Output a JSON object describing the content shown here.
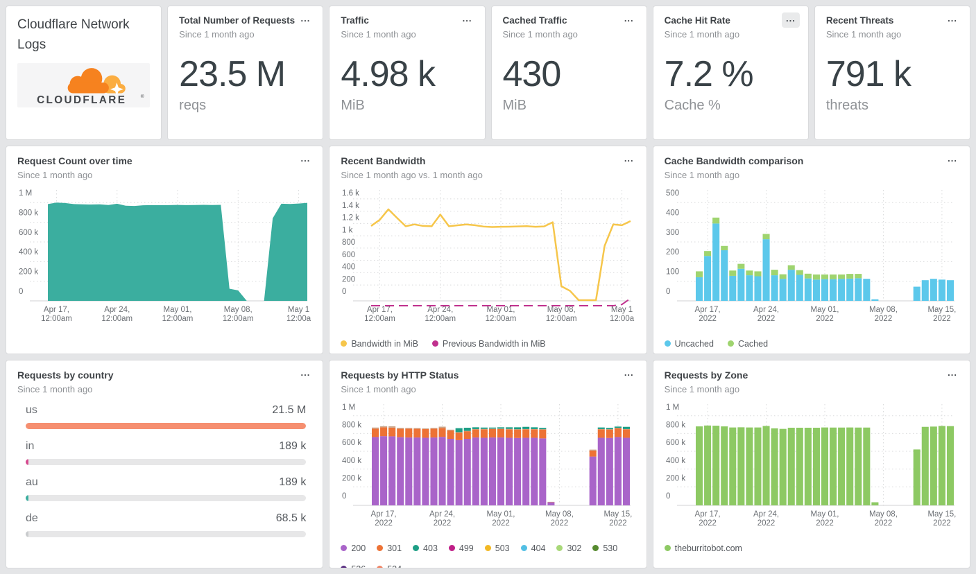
{
  "branding": {
    "title": "Cloudflare Network Logs",
    "logo_text": "CLOUDFLARE",
    "logo_reg": "®",
    "logo_colors": {
      "cloud": "#F6821F",
      "sun": "#FBAD41",
      "text": "#43464A"
    }
  },
  "ui": {
    "menu_icon": "...",
    "page_bg": "#e4e5e7"
  },
  "stats": [
    {
      "title": "Total Number of Requests",
      "subtitle": "Since 1 month ago",
      "value": "23.5 M",
      "unit": "reqs"
    },
    {
      "title": "Traffic",
      "subtitle": "Since 1 month ago",
      "value": "4.98 k",
      "unit": "MiB"
    },
    {
      "title": "Cached Traffic",
      "subtitle": "Since 1 month ago",
      "value": "430",
      "unit": "MiB"
    },
    {
      "title": "Cache Hit Rate",
      "subtitle": "Since 1 month ago",
      "value": "7.2 %",
      "unit": "Cache %"
    },
    {
      "title": "Recent Threats",
      "subtitle": "Since 1 month ago",
      "value": "791 k",
      "unit": "threats"
    }
  ],
  "panels": {
    "request_count": {
      "title": "Request Count over time",
      "subtitle": "Since 1 month ago"
    },
    "bandwidth": {
      "title": "Recent Bandwidth",
      "subtitle": "Since 1 month ago vs. 1 month ago"
    },
    "cache_bw": {
      "title": "Cache Bandwidth comparison",
      "subtitle": "Since 1 month ago"
    },
    "country": {
      "title": "Requests by country",
      "subtitle": "Since 1 month ago"
    },
    "http_status": {
      "title": "Requests by HTTP Status",
      "subtitle": "Since 1 month ago"
    },
    "zone": {
      "title": "Requests by Zone",
      "subtitle": "Since 1 month ago"
    }
  },
  "legends": {
    "bandwidth": [
      {
        "label": "Bandwidth in MiB",
        "color": "#f6c64b"
      },
      {
        "label": "Previous Bandwidth in MiB",
        "color": "#c0318e"
      }
    ],
    "cache_bw": [
      {
        "label": "Uncached",
        "color": "#5cc8eb"
      },
      {
        "label": "Cached",
        "color": "#9fd46f"
      }
    ],
    "http_status": [
      {
        "label": "200",
        "color": "#a964c9"
      },
      {
        "label": "301",
        "color": "#ed7235"
      },
      {
        "label": "403",
        "color": "#1d9e85"
      },
      {
        "label": "499",
        "color": "#bf1e87"
      },
      {
        "label": "503",
        "color": "#f2b824"
      },
      {
        "label": "404",
        "color": "#52bfe4"
      },
      {
        "label": "302",
        "color": "#a8d878"
      },
      {
        "label": "530",
        "color": "#568a2f"
      },
      {
        "label": "526",
        "color": "#5b3082"
      },
      {
        "label": "524",
        "color": "#f08465"
      }
    ],
    "zone": [
      {
        "label": "theburritobot.com",
        "color": "#8dc963"
      }
    ]
  },
  "countries": {
    "rows": [
      {
        "label": "us",
        "value": "21.5 M",
        "width_css": "100%",
        "color": "#f68f70"
      },
      {
        "label": "in",
        "value": "189 k",
        "width_css": "0.7%",
        "color": "#d6498f"
      },
      {
        "label": "au",
        "value": "189 k",
        "width_css": "0.7%",
        "color": "#3bae9f"
      },
      {
        "label": "de",
        "value": "68.5 k",
        "width_css": "0.3%",
        "color": "#c9cbcd"
      }
    ]
  },
  "chart_data": {
    "request_count": {
      "type": "area",
      "title": "Request Count over time",
      "ylabel": "requests",
      "ymax": 1000,
      "unit": "k requests",
      "color": "#3bae9f",
      "days": 31,
      "yticks": [
        "1 M",
        "800 k",
        "600 k",
        "400 k",
        "200 k",
        "0"
      ],
      "xticks": [
        {
          "l1": "Apr 17,",
          "l2": "12:00am",
          "d": 1
        },
        {
          "l1": "Apr 24,",
          "l2": "12:00am",
          "d": 8
        },
        {
          "l1": "May 01,",
          "l2": "12:00am",
          "d": 15
        },
        {
          "l1": "May 08,",
          "l2": "12:00am",
          "d": 22
        },
        {
          "l1": "May 1",
          "l2": "12:00a",
          "d": 29
        }
      ],
      "values": [
        885,
        900,
        895,
        885,
        882,
        880,
        882,
        875,
        888,
        868,
        865,
        872,
        874,
        873,
        874,
        876,
        874,
        875,
        877,
        875,
        877,
        25,
        8,
        0,
        0,
        0,
        740,
        888,
        886,
        890,
        897
      ]
    },
    "bandwidth": {
      "type": "line",
      "title": "Recent Bandwidth",
      "ylabel": "MiB",
      "ymax": 1600,
      "color": "#f6c64b",
      "prev_color": "#c0318e",
      "days": 31,
      "yticks": [
        "1.6 k",
        "1.4 k",
        "1.2 k",
        "1 k",
        "800",
        "600",
        "400",
        "200",
        "0"
      ],
      "xticks": [
        {
          "l1": "Apr 17,",
          "l2": "12:00am",
          "d": 1
        },
        {
          "l1": "Apr 24,",
          "l2": "12:00am",
          "d": 8
        },
        {
          "l1": "May 01,",
          "l2": "12:00am",
          "d": 15
        },
        {
          "l1": "May 08,",
          "l2": "12:00am",
          "d": 22
        },
        {
          "l1": "May 1",
          "l2": "12:00a",
          "d": 29
        }
      ],
      "values": [
        1060,
        1160,
        1330,
        1190,
        1055,
        1085,
        1060,
        1055,
        1245,
        1055,
        1070,
        1085,
        1072,
        1050,
        1042,
        1046,
        1048,
        1052,
        1056,
        1046,
        1052,
        1120,
        80,
        5,
        0,
        0,
        0,
        735,
        1085,
        1072,
        1140
      ],
      "prev": [
        0,
        0,
        0,
        0,
        0,
        0,
        0,
        0,
        0,
        0,
        0,
        0,
        0,
        0,
        0,
        0,
        0,
        0,
        0,
        0,
        0,
        0,
        0,
        0,
        0,
        0,
        0,
        0,
        0,
        20,
        120
      ]
    },
    "cache_bw": {
      "type": "stackbar",
      "title": "Cache Bandwidth comparison",
      "ylabel": "MiB",
      "ymax": 500,
      "days": 31,
      "yticks": [
        "500",
        "400",
        "300",
        "200",
        "100",
        "0"
      ],
      "xticks": [
        {
          "l1": "Apr 17,",
          "l2": "2022",
          "d": 1
        },
        {
          "l1": "Apr 24,",
          "l2": "2022",
          "d": 8
        },
        {
          "l1": "May 01,",
          "l2": "2022",
          "d": 15
        },
        {
          "l1": "May 08,",
          "l2": "2022",
          "d": 22
        },
        {
          "l1": "May 15,",
          "l2": "2022",
          "d": 29
        }
      ],
      "series": [
        {
          "name": "Uncached",
          "color": "#5cc8eb",
          "values": [
            120,
            228,
            393,
            257,
            127,
            163,
            130,
            125,
            313,
            130,
            112,
            158,
            132,
            114,
            108,
            110,
            110,
            112,
            113,
            115,
            112,
            8,
            0,
            0,
            0,
            0,
            72,
            105,
            112,
            108,
            105
          ]
        },
        {
          "name": "Cached",
          "color": "#9fd46f",
          "values": [
            30,
            25,
            30,
            22,
            27,
            25,
            24,
            25,
            27,
            28,
            23,
            23,
            24,
            24,
            26,
            24,
            24,
            22,
            24,
            22,
            0,
            0,
            0,
            0,
            0,
            0,
            0,
            0,
            0,
            0,
            0
          ]
        }
      ]
    },
    "http_status": {
      "type": "stackbar",
      "title": "Requests by HTTP Status",
      "ylabel": "requests",
      "ymax": 1000,
      "days": 31,
      "yticks": [
        "1 M",
        "800 k",
        "600 k",
        "400 k",
        "200 k",
        "0"
      ],
      "xticks": [
        {
          "l1": "Apr 17,",
          "l2": "2022",
          "d": 1
        },
        {
          "l1": "Apr 24,",
          "l2": "2022",
          "d": 8
        },
        {
          "l1": "May 01,",
          "l2": "2022",
          "d": 15
        },
        {
          "l1": "May 08,",
          "l2": "2022",
          "d": 22
        },
        {
          "l1": "May 15,",
          "l2": "2022",
          "d": 29
        }
      ],
      "series": [
        {
          "name": "200",
          "color": "#a964c9",
          "values": [
            770,
            780,
            778,
            768,
            765,
            765,
            762,
            765,
            772,
            750,
            735,
            750,
            765,
            762,
            765,
            765,
            762,
            760,
            762,
            762,
            755,
            35,
            0,
            0,
            0,
            0,
            550,
            762,
            760,
            770,
            762
          ]
        },
        {
          "name": "301",
          "color": "#ed7235",
          "values": [
            95,
            100,
            98,
            95,
            100,
            98,
            98,
            100,
            100,
            95,
            85,
            85,
            90,
            95,
            95,
            95,
            95,
            95,
            95,
            95,
            100,
            3,
            0,
            0,
            0,
            0,
            68,
            95,
            95,
            100,
            95
          ]
        },
        {
          "name": "524",
          "color": "#c9a489",
          "values": [
            12,
            12,
            15,
            10,
            8,
            8,
            8,
            8,
            15,
            8,
            5,
            5,
            5,
            5,
            5,
            5,
            5,
            3,
            3,
            3,
            3,
            2,
            0,
            0,
            0,
            0,
            10,
            3,
            3,
            3,
            3
          ]
        },
        {
          "name": "403",
          "color": "#1d9e85",
          "values": [
            0,
            0,
            0,
            0,
            0,
            0,
            0,
            0,
            0,
            0,
            45,
            35,
            20,
            15,
            12,
            15,
            18,
            22,
            25,
            20,
            15,
            0,
            0,
            0,
            0,
            0,
            0,
            18,
            15,
            15,
            25
          ]
        }
      ]
    },
    "zone": {
      "type": "stackbar",
      "title": "Requests by Zone",
      "ylabel": "requests",
      "ymax": 1000,
      "days": 31,
      "yticks": [
        "1 M",
        "800 k",
        "600 k",
        "400 k",
        "200 k",
        "0"
      ],
      "xticks": [
        {
          "l1": "Apr 17,",
          "l2": "2022",
          "d": 1
        },
        {
          "l1": "Apr 24,",
          "l2": "2022",
          "d": 8
        },
        {
          "l1": "May 01,",
          "l2": "2022",
          "d": 15
        },
        {
          "l1": "May 08,",
          "l2": "2022",
          "d": 22
        },
        {
          "l1": "May 15,",
          "l2": "2022",
          "d": 29
        }
      ],
      "series": [
        {
          "name": "theburritobot.com",
          "color": "#8dc963",
          "values": [
            890,
            900,
            898,
            890,
            878,
            880,
            878,
            878,
            895,
            868,
            862,
            875,
            875,
            875,
            875,
            878,
            877,
            877,
            878,
            877,
            877,
            35,
            0,
            0,
            0,
            0,
            630,
            885,
            888,
            895,
            893
          ]
        }
      ]
    }
  }
}
